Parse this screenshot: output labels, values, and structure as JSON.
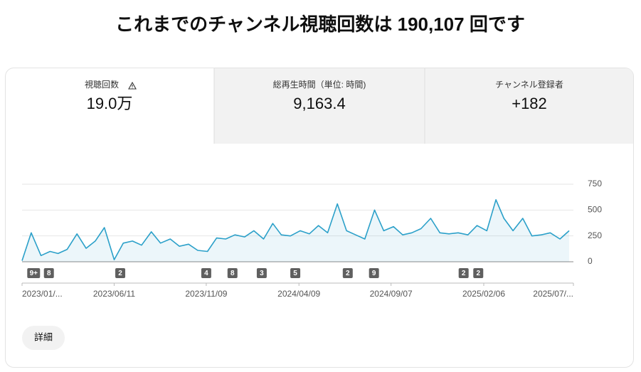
{
  "header": {
    "title": "これまでのチャンネル視聴回数は 190,107 回です"
  },
  "tabs": [
    {
      "label": "視聴回数",
      "value": "19.0万"
    },
    {
      "label": "総再生時間（単位: 時間)",
      "value": "9,163.4"
    },
    {
      "label": "チャンネル登録者",
      "value": "+182"
    }
  ],
  "chart_data": {
    "type": "line",
    "x": [
      "2023/01/11",
      "2023/01/26",
      "2023/02/11",
      "2023/02/26",
      "2023/03/11",
      "2023/03/26",
      "2023/04/11",
      "2023/04/26",
      "2023/05/11",
      "2023/05/26",
      "2023/06/11",
      "2023/06/26",
      "2023/07/11",
      "2023/07/26",
      "2023/08/11",
      "2023/08/26",
      "2023/09/11",
      "2023/09/26",
      "2023/10/11",
      "2023/10/26",
      "2023/11/11",
      "2023/11/26",
      "2023/12/11",
      "2023/12/26",
      "2024/01/11",
      "2024/01/26",
      "2024/02/11",
      "2024/02/26",
      "2024/03/11",
      "2024/03/26",
      "2024/04/11",
      "2024/04/26",
      "2024/05/11",
      "2024/05/26",
      "2024/06/11",
      "2024/06/26",
      "2024/07/11",
      "2024/07/26",
      "2024/08/11",
      "2024/08/26",
      "2024/09/11",
      "2024/09/26",
      "2024/10/11",
      "2024/10/26",
      "2024/11/11",
      "2024/11/26",
      "2024/12/11",
      "2024/12/26",
      "2025/01/11",
      "2025/01/26",
      "2025/02/11",
      "2025/02/26",
      "2025/03/11",
      "2025/03/26",
      "2025/04/11",
      "2025/04/26",
      "2025/05/11",
      "2025/05/26",
      "2025/06/11",
      "2025/06/26"
    ],
    "series": [
      {
        "color": "#2ba0c9",
        "values": [
          10,
          280,
          60,
          100,
          80,
          120,
          270,
          130,
          200,
          330,
          20,
          180,
          200,
          160,
          290,
          180,
          220,
          150,
          170,
          110,
          100,
          230,
          220,
          260,
          240,
          300,
          220,
          370,
          260,
          250,
          300,
          270,
          350,
          280,
          560,
          300,
          260,
          220,
          500,
          300,
          340,
          260,
          280,
          320,
          420,
          280,
          270,
          280,
          260,
          350,
          300,
          600,
          420,
          300,
          420,
          250,
          260,
          280,
          220,
          300
        ]
      }
    ],
    "xlim": [
      "2023/01/11",
      "2025/07/03"
    ],
    "ylim": [
      0,
      750
    ],
    "xticks": [
      {
        "value": "2023/01/11",
        "label": "2023/01/..."
      },
      "2023/06/11",
      "2023/11/09",
      "2024/04/09",
      "2024/09/07",
      "2025/02/06",
      {
        "value": "2025/07/03",
        "label": "2025/07/..."
      }
    ],
    "yticks": [
      0,
      250,
      500,
      750
    ],
    "grid": true,
    "annotations": [
      {
        "x": "2023/01/30",
        "label": "9+"
      },
      {
        "x": "2023/02/24",
        "label": "8"
      },
      {
        "x": "2023/06/21",
        "label": "2"
      },
      {
        "x": "2023/11/09",
        "label": "4"
      },
      {
        "x": "2023/12/22",
        "label": "8"
      },
      {
        "x": "2024/02/08",
        "label": "3"
      },
      {
        "x": "2024/04/03",
        "label": "5"
      },
      {
        "x": "2024/06/28",
        "label": "2"
      },
      {
        "x": "2024/08/10",
        "label": "9"
      },
      {
        "x": "2025/01/04",
        "label": "2"
      },
      {
        "x": "2025/01/28",
        "label": "2"
      }
    ]
  },
  "button": {
    "label": "詳細"
  }
}
